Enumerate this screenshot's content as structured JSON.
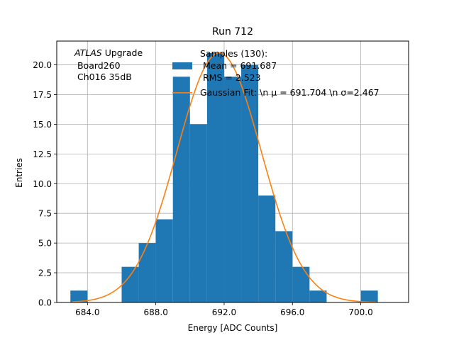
{
  "chart_data": {
    "type": "bar",
    "title": "Run 712",
    "xlabel": "Energy [ADC Counts]",
    "ylabel": "Entries",
    "xlim": [
      682.2,
      702.8
    ],
    "ylim": [
      0,
      22.0
    ],
    "xticks": [
      684,
      688,
      692,
      696,
      700
    ],
    "xtick_labels": [
      "684.0",
      "688.0",
      "692.0",
      "696.0",
      "700.0"
    ],
    "yticks": [
      0,
      2.5,
      5,
      7.5,
      10,
      12.5,
      15,
      17.5,
      20
    ],
    "ytick_labels": [
      "0.0",
      "2.5",
      "5.0",
      "7.5",
      "10.0",
      "12.5",
      "15.0",
      "17.5",
      "20.0"
    ],
    "grid": true,
    "bar_color": "#1f77b4",
    "fit_color": "#ff7f0e",
    "bin_edges": [
      683,
      684,
      685,
      686,
      687,
      688,
      689,
      690,
      691,
      692,
      693,
      694,
      695,
      696,
      697,
      698,
      699,
      700,
      701
    ],
    "counts": [
      1,
      0,
      0,
      3,
      5,
      7,
      19,
      15,
      21,
      19,
      20,
      9,
      6,
      3,
      1,
      0,
      0,
      1
    ],
    "gaussian": {
      "amplitude": 21.0,
      "mu": 691.704,
      "sigma": 2.467,
      "x_range": [
        683.1,
        700.9
      ]
    },
    "annotation": {
      "line1_italic": "ATLAS",
      "line1_rest": " Upgrade",
      "line2": " Board260",
      "line3": " Ch016 35dB"
    },
    "legend": {
      "position": "top-right",
      "hist_label_lines": [
        "Samples (130):",
        " Mean = 691.687",
        " RMS = 2.523"
      ],
      "fit_label": "Gaussian Fit: \\n μ = 691.704 \\n σ=2.467"
    }
  }
}
